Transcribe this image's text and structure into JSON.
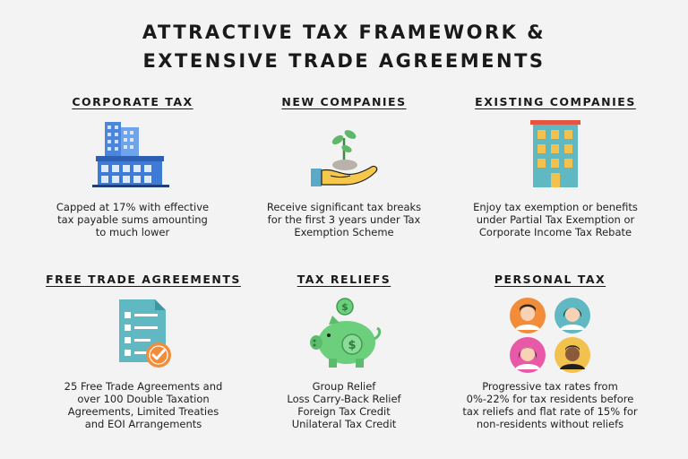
{
  "title": {
    "line1": "ATTRACTIVE TAX FRAMEWORK &",
    "line2": "EXTENSIVE TRADE AGREEMENTS"
  },
  "sections": [
    {
      "heading": "CORPORATE TAX",
      "icon": "office-buildings-icon",
      "lines": [
        "Capped at 17% with effective",
        "tax payable sums amounting",
        "to much lower"
      ]
    },
    {
      "heading": "NEW COMPANIES",
      "icon": "hand-with-seedling-icon",
      "lines": [
        "Receive significant tax breaks",
        "for the first 3 years under Tax",
        "Exemption Scheme"
      ]
    },
    {
      "heading": "EXISTING COMPANIES",
      "icon": "building-icon",
      "lines": [
        "Enjoy tax exemption or benefits",
        "under Partial Tax Exemption or",
        "Corporate Income Tax Rebate"
      ]
    },
    {
      "heading": "FREE TRADE AGREEMENTS",
      "icon": "checklist-document-icon",
      "lines": [
        "25 Free Trade Agreements and",
        "over 100 Double Taxation",
        "Agreements, Limited Treaties",
        "and EOI Arrangements"
      ]
    },
    {
      "heading": "TAX RELIEFS",
      "icon": "piggy-bank-icon",
      "lines": [
        "Group Relief",
        "Loss Carry-Back Relief",
        "Foreign Tax Credit",
        "Unilateral Tax Credit"
      ]
    },
    {
      "heading": "PERSONAL TAX",
      "icon": "people-avatars-icon",
      "lines": [
        "Progressive tax rates from",
        "0%-22% for tax residents before",
        "tax reliefs and flat rate of 15% for",
        "non-residents without reliefs"
      ]
    }
  ],
  "colors": {
    "background": "#f3f3f3",
    "text": "#1a1a1a",
    "building_blue": "#3e7bd6",
    "building_teal": "#5fb8c2",
    "accent_orange": "#f28c38",
    "piggy_green": "#6ccf7c",
    "hand_yellow": "#f5c84c"
  }
}
